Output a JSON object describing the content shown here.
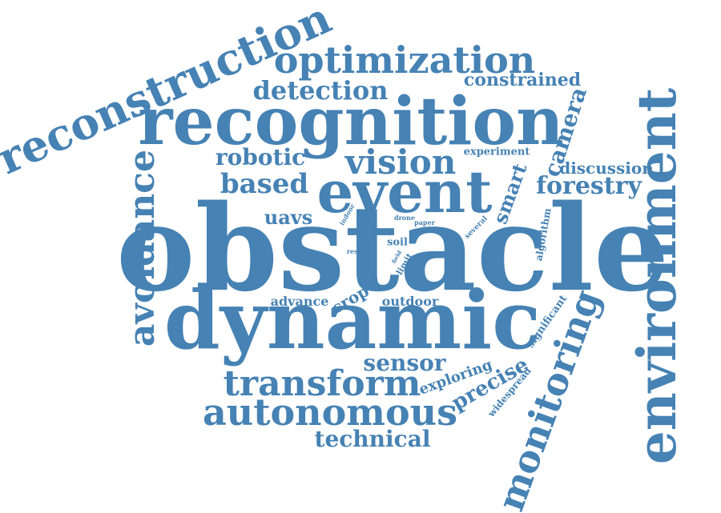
{
  "color": "#4682b4",
  "words": [
    {
      "text": "obstacle"
    },
    {
      "text": "dynamic"
    },
    {
      "text": "recognition"
    },
    {
      "text": "event"
    },
    {
      "text": "environment"
    },
    {
      "text": "reconstruction"
    },
    {
      "text": "optimization"
    },
    {
      "text": "autonomous"
    },
    {
      "text": "monitoring"
    },
    {
      "text": "avoidance"
    },
    {
      "text": "transform"
    },
    {
      "text": "vision"
    },
    {
      "text": "detection"
    },
    {
      "text": "based"
    },
    {
      "text": "robotic"
    },
    {
      "text": "forestry"
    },
    {
      "text": "constrained"
    },
    {
      "text": "camera"
    },
    {
      "text": "discussion"
    },
    {
      "text": "technical"
    },
    {
      "text": "sensor"
    },
    {
      "text": "precise"
    },
    {
      "text": "uavs"
    },
    {
      "text": "smart"
    },
    {
      "text": "exploring"
    },
    {
      "text": "crop"
    },
    {
      "text": "advance"
    },
    {
      "text": "outdoor"
    },
    {
      "text": "significant"
    },
    {
      "text": "widespread"
    },
    {
      "text": "experiment"
    },
    {
      "text": "algorithm"
    },
    {
      "text": "soil"
    },
    {
      "text": "several"
    },
    {
      "text": "limit"
    },
    {
      "text": "indoor"
    },
    {
      "text": "drone"
    },
    {
      "text": "paper"
    },
    {
      "text": "result"
    },
    {
      "text": "field"
    }
  ]
}
